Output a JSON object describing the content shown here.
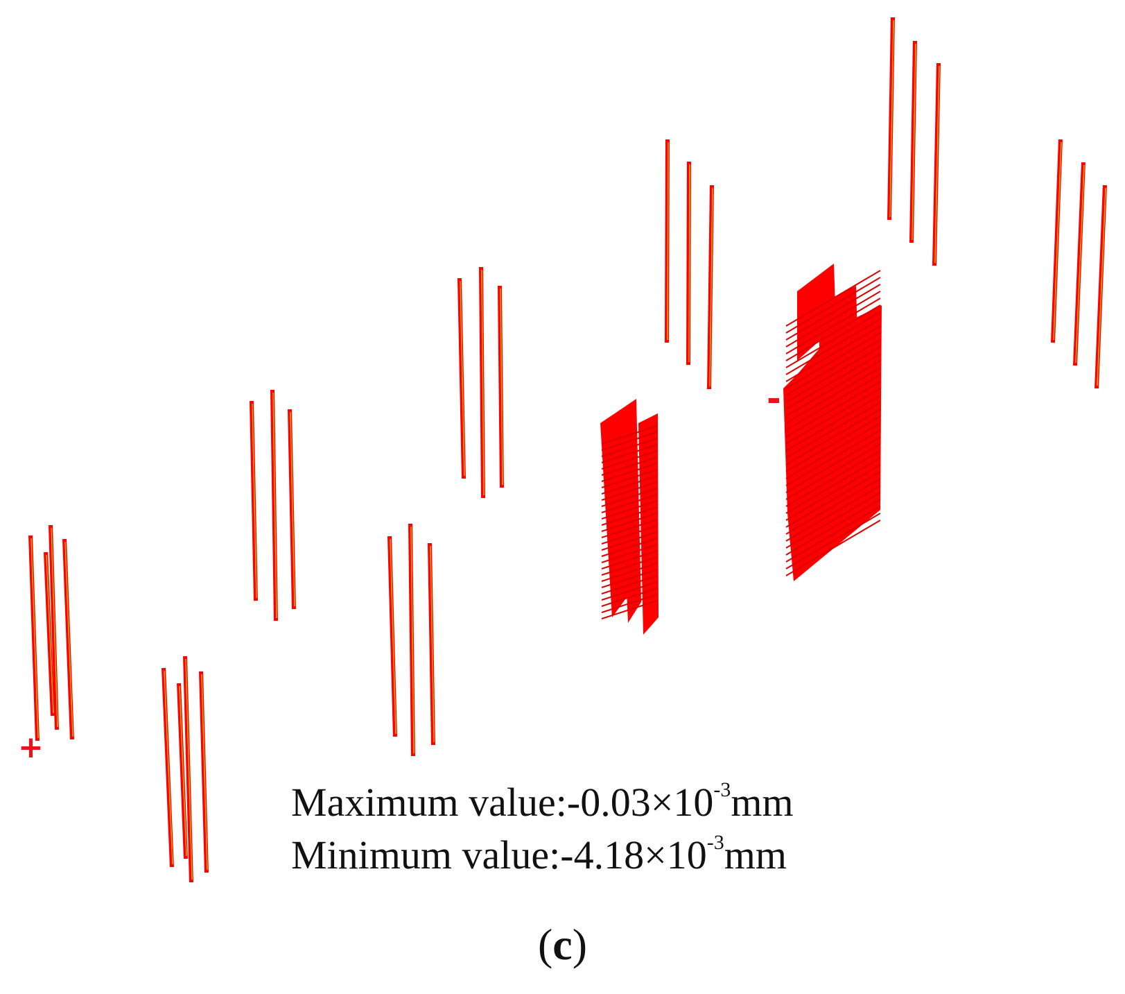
{
  "figure": {
    "colors": {
      "member": "#ff0000",
      "member_dark": "#d80000",
      "highlight": "#ffd000",
      "text": "#111111"
    },
    "markers": {
      "positive": "+",
      "negative": "-"
    },
    "max_label": "Maximum value:",
    "max_value": "-0.03×10",
    "max_exp": "-3",
    "max_unit": "mm",
    "min_label": "Minimum value:",
    "min_value": "-4.18×10",
    "min_exp": "-3",
    "min_unit": "mm",
    "panel_open": "(",
    "panel_letter": "c",
    "panel_close": ")"
  }
}
